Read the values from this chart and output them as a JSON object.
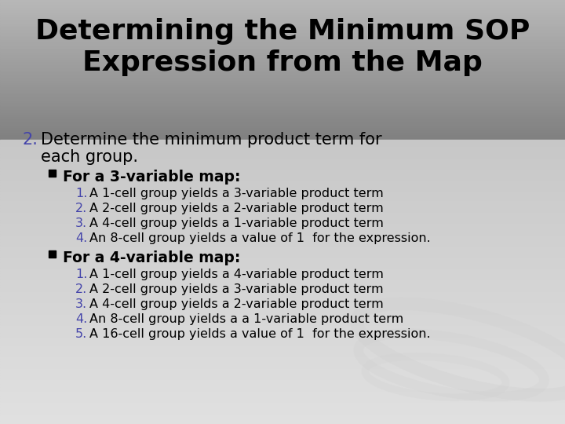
{
  "title_line1": "Determining the Minimum SOP",
  "title_line2": "Expression from the Map",
  "title_fontsize": 26,
  "item2_label": "2.",
  "item2_text_line1": "Determine the minimum product term for",
  "item2_text_line2": "each group.",
  "item2_fontsize": 15,
  "bullet1_header": "For a 3-variable map:",
  "bullet1_items": [
    "A 1-cell group yields a 3-variable product term",
    "A 2-cell group yields a 2-variable product term",
    "A 4-cell group yields a 1-variable product term",
    "An 8-cell group yields a value of 1  for the expression."
  ],
  "bullet2_header": "For a 4-variable map:",
  "bullet2_items": [
    "A 1-cell group yields a 4-variable product term",
    "A 2-cell group yields a 3-variable product term",
    "A 4-cell group yields a 2-variable product term",
    "An 8-cell group yields a a 1-variable product term",
    "A 16-cell group yields a value of 1  for the expression."
  ],
  "body_fontsize": 11.5,
  "header_fontsize": 13.5,
  "num_color": "#4444aa",
  "text_color": "#000000",
  "title_color": "#000000",
  "swirl_color1": "#c8c8c8",
  "swirl_color2": "#b8b8b8",
  "swirl_color3": "#a8a8a8"
}
